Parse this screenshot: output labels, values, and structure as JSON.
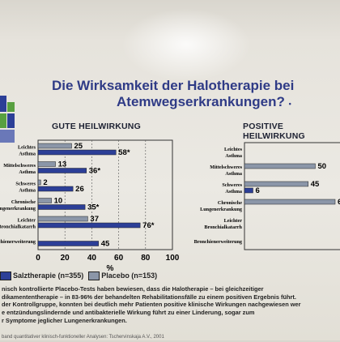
{
  "title_line1": "Die Wirksamkeit der Halotherapie bei",
  "title_line2": "Atemwegserkrankungen?",
  "title_marker": "•",
  "colors": {
    "salz": "#2c3f97",
    "placebo": "#8b96a8",
    "title": "#2f3b86"
  },
  "chart_data": [
    {
      "type": "bar",
      "title": "GUTE HEILWIRKUNG",
      "xlabel": "%",
      "xlim": [
        0,
        100
      ],
      "xticks": [
        0,
        20,
        40,
        60,
        80,
        100
      ],
      "categories": [
        "Leichtes Asthma",
        "Mittelschweres Asthma",
        "Schweres Asthma",
        "Chronische Lungenerkrankung",
        "Leichter Bronchialkatarrh",
        "Bronchienerweiterung"
      ],
      "series": [
        {
          "name": "Salztherapie (n=355)",
          "values": [
            58,
            36,
            26,
            35,
            76,
            45
          ],
          "labels": [
            "58*",
            "36*",
            "26",
            "35*",
            "76*",
            "45"
          ]
        },
        {
          "name": "Placebo (n=153)",
          "values": [
            25,
            13,
            2,
            10,
            37,
            null
          ],
          "labels": [
            "25",
            "13",
            "2",
            "10",
            "37",
            ""
          ]
        }
      ]
    },
    {
      "type": "bar",
      "title": "POSITIVE HEILWIRKUNG",
      "categories": [
        "Leichtes Asthma",
        "Mittelschweres Asthma",
        "Schweres Asthma",
        "Chronische Lungenerkrankung",
        "Leichter Bronchialkatarrh",
        "Bronchienerweiterung"
      ],
      "series": [
        {
          "name": "Salztherapie (n=355)",
          "values": [
            null,
            null,
            6,
            null,
            null,
            null
          ],
          "labels": [
            "",
            "",
            "6",
            "",
            "",
            ""
          ]
        },
        {
          "name": "Placebo (n=153)",
          "values": [
            null,
            50,
            45,
            64,
            null,
            null
          ],
          "labels": [
            "",
            "50",
            "45",
            "64",
            "",
            ""
          ]
        }
      ]
    }
  ],
  "legend": [
    {
      "label": "Salztherapie (n=355)",
      "color": "#2c3f97"
    },
    {
      "label": "Placebo (n=153)",
      "color": "#8b96a8"
    }
  ],
  "paragraph1": [
    "nisch kontrollierte Placebo-Tests haben bewiesen, dass die Halotherapie – bei gleichzeitiger",
    "dikamententherapie – in 83-96% der behandelten Rehabilitationsfälle zu einem positiven Ergebnis führt.",
    "der Kontrollgruppe, konnten bei deutlich mehr Patienten positive klinische Wirkungen nachgewiesen wer"
  ],
  "paragraph2": [
    "e entzündungslindernde und antibakterielle Wirkung führt zu einer Linderung, sogar zum",
    "r Symptome jeglicher Lungenerkrankungen."
  ],
  "footnote": "band quantitativer klinisch-funktioneller Analysen: Tschervinskaja A.V., 2001"
}
